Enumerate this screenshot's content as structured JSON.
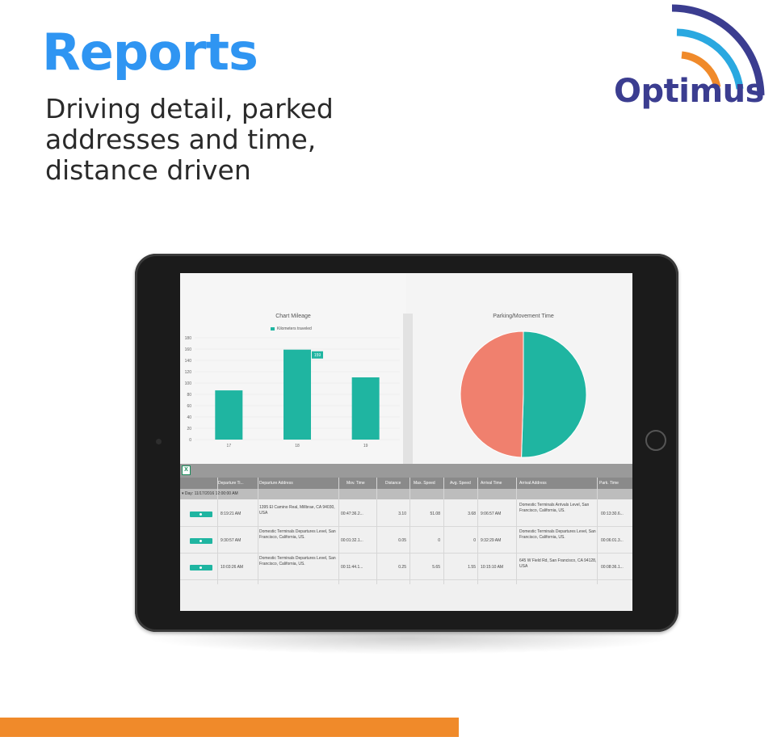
{
  "hero": {
    "title": "Reports",
    "subtitle": "Driving detail, parked addresses and time, distance driven"
  },
  "logo": {
    "text": "Optimus",
    "colors": {
      "arc_outer": "#3b3d90",
      "arc_mid": "#2aa8e0",
      "arc_inner": "#f08a2a"
    }
  },
  "colors": {
    "accent_blue": "#2f95f2",
    "teal": "#1fb5a1",
    "salmon": "#f0806e",
    "orange_bar": "#f08a2a"
  },
  "chart_data": [
    {
      "type": "bar",
      "title": "Chart Mileage",
      "legend": "Kilometers traveled",
      "categories": [
        "17",
        "18",
        "19"
      ],
      "values": [
        87,
        159,
        110
      ],
      "ylim": [
        0,
        180
      ],
      "yticks": [
        "0",
        "20",
        "40",
        "60",
        "80",
        "100",
        "120",
        "140",
        "160",
        "180"
      ],
      "data_label": "159",
      "grid": true
    },
    {
      "type": "pie",
      "title": "Parking/Movement Time",
      "slices": [
        {
          "label": "",
          "value": 50.5,
          "color": "#1fb5a1"
        },
        {
          "label": "",
          "value": 49.5,
          "color": "#f0806e"
        }
      ]
    }
  ],
  "table": {
    "export_icon": "excel-export-icon",
    "columns": [
      "Departure Ti...",
      "Departure Address",
      "Mov. Time",
      "Distance",
      "Max. Speed",
      "Avg. Speed",
      "Arrival Time",
      "Arrival Address",
      "Park. Time"
    ],
    "group": "Day: 11/17/2016 12:00:00 AM",
    "rows": [
      {
        "departure_time": "8:19:21 AM",
        "departure_address": "1395 El Camino Real, Millbrae, CA 94030, USA",
        "mov_time": "00:47:36.2...",
        "distance": "3.10",
        "max_speed": "51.08",
        "avg_speed": "3.68",
        "arrival_time": "9:06:57 AM",
        "arrival_address": "Domestic Terminals Arrivals Level, San Francisco, California, US.",
        "park_time": "00:13:30.6..."
      },
      {
        "departure_time": "9:30:57 AM",
        "departure_address": "Domestic Terminals Departures Level, San Francisco, California, US.",
        "mov_time": "00:01:32.1...",
        "distance": "0.05",
        "max_speed": "0",
        "avg_speed": "0",
        "arrival_time": "9:32:29 AM",
        "arrival_address": "Domestic Terminals Departures Level, San Francisco, California, US.",
        "park_time": "00:06:01.3..."
      },
      {
        "departure_time": "10:03:26 AM",
        "departure_address": "Domestic Terminals Departures Level, San Francisco, California, US.",
        "mov_time": "00:11:44.1...",
        "distance": "0.25",
        "max_speed": "5.65",
        "avg_speed": "1.55",
        "arrival_time": "10:15:10 AM",
        "arrival_address": "645 W Field Rd, San Francisco, CA 94128, USA",
        "park_time": "00:08:36.1..."
      }
    ]
  }
}
